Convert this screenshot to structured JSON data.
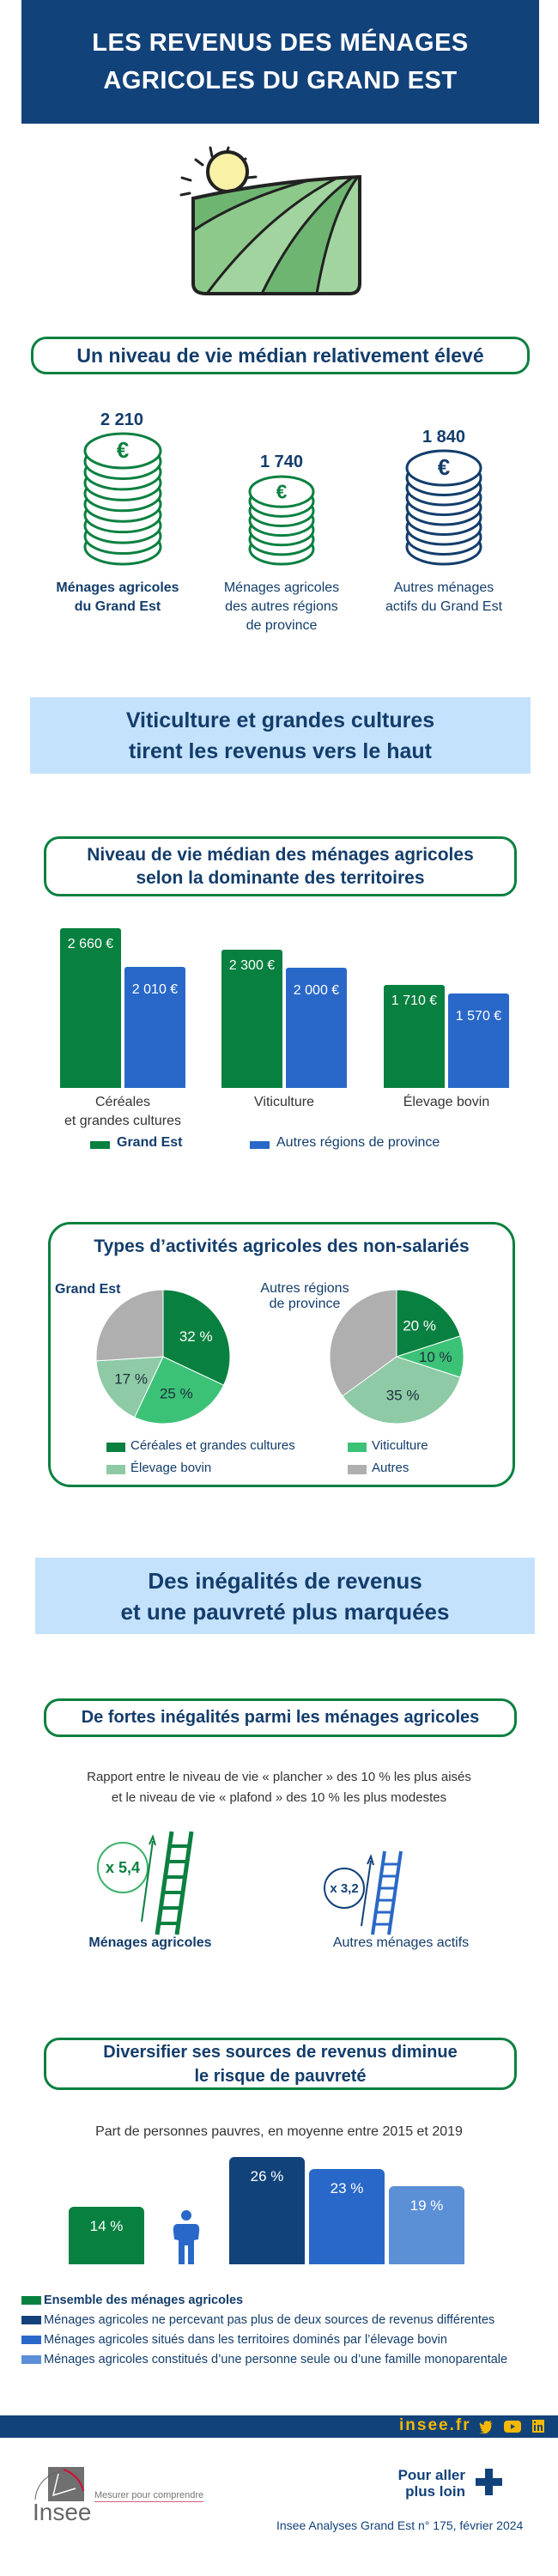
{
  "header": {
    "title_line1": "LES REVENUS DES MÉNAGES",
    "title_line2": "AGRICOLES DU GRAND EST"
  },
  "section1": {
    "title": "Un niveau de vie médian relativement élevé",
    "items": [
      {
        "value": "2 210",
        "label_line1": "Ménages agricoles",
        "label_line2": "du Grand Est",
        "label_line3": "",
        "color": "#0b8040"
      },
      {
        "value": "1 740",
        "label_line1": "Ménages agricoles",
        "label_line2": "des autres régions",
        "label_line3": "de province",
        "color": "#0b8040"
      },
      {
        "value": "1 840",
        "label_line1": "Autres ménages",
        "label_line2": "actifs du Grand Est",
        "label_line3": "",
        "color": "#133d6b"
      }
    ]
  },
  "section2": {
    "banner_line1": "Viticulture et grandes cultures",
    "banner_line2": "tirent les revenus vers le haut"
  },
  "section3": {
    "banner_line1": "Des inégalités de revenus",
    "banner_line2": "et une pauvreté plus marquées",
    "title": "De fortes inégalités parmi les ménages agricoles",
    "subtitle_line1": "Rapport entre le niveau de vie « plancher » des 10 % les plus aisés",
    "subtitle_line2": "et le niveau de vie « plafond » des 10 % les plus modestes",
    "ratios": [
      {
        "value": "x 5,4",
        "label": "Ménages agricoles",
        "color": "#0b8040"
      },
      {
        "value": "x 3,2",
        "label": "Autres ménages actifs",
        "color": "#2968c8"
      }
    ]
  },
  "chart_data": [
    {
      "type": "bar",
      "title_line1": "Niveau de vie médian des ménages agricoles",
      "title_line2": "selon la dominante des territoires",
      "categories": [
        {
          "line1": "Céréales",
          "line2": "et grandes cultures"
        },
        {
          "line1": "Viticulture",
          "line2": ""
        },
        {
          "line1": "Élevage bovin",
          "line2": ""
        }
      ],
      "series": [
        {
          "name": "Grand Est",
          "color": "#08803f",
          "values": [
            2660,
            2300,
            1710
          ],
          "labels": [
            "2 660 €",
            "2 300 €",
            "1 710 €"
          ]
        },
        {
          "name": "Autres régions de province",
          "color": "#2968c8",
          "values": [
            2010,
            2000,
            1570
          ],
          "labels": [
            "2 010 €",
            "2 000 €",
            "1 570 €"
          ]
        }
      ],
      "ylim": [
        0,
        2660
      ]
    },
    {
      "type": "pie",
      "title": "Types d’activités agricoles des non-salariés",
      "categories": [
        "Céréales et grandes cultures",
        "Viticulture",
        "Élevage bovin",
        "Autres"
      ],
      "colors": [
        "#08803f",
        "#3bc277",
        "#8dcaa5",
        "#b0afaf"
      ],
      "series": [
        {
          "name": "Grand Est",
          "values": [
            32,
            25,
            17,
            26
          ],
          "labels": [
            "32 %",
            "25 %",
            "17 %",
            ""
          ]
        },
        {
          "name_line1": "Autres régions",
          "name_line2": "de province",
          "values": [
            20,
            10,
            35,
            35
          ],
          "labels": [
            "20 %",
            "10 %",
            "35 %",
            ""
          ]
        }
      ]
    },
    {
      "type": "bar",
      "title_line1": "Diversifier ses sources de revenus diminue",
      "title_line2": "le risque de pauvreté",
      "subtitle": "Part de personnes pauvres, en moyenne entre 2015 et 2019",
      "categories": [
        "Ensemble des ménages agricoles",
        "Ménages agricoles ne percevant pas plus de deux sources de revenus différentes",
        "Ménages agricoles situés dans les territoires dominés par l’élevage bovin",
        "Ménages agricoles constitués d’une personne seule ou d’une famille monoparentale"
      ],
      "colors": [
        "#08803f",
        "#12427a",
        "#2968c8",
        "#5b8fd6"
      ],
      "values": [
        14,
        26,
        23,
        19
      ],
      "labels": [
        "14 %",
        "26 %",
        "23 %",
        "19 %"
      ],
      "ylim": [
        0,
        26
      ]
    }
  ],
  "footer": {
    "site": "insee.fr",
    "logo_text": "Insee",
    "tagline": "Mesurer pour comprendre",
    "more_line1": "Pour aller",
    "more_line2": "plus loin",
    "reference": "Insee Analyses Grand Est n° 175, février 2024"
  }
}
